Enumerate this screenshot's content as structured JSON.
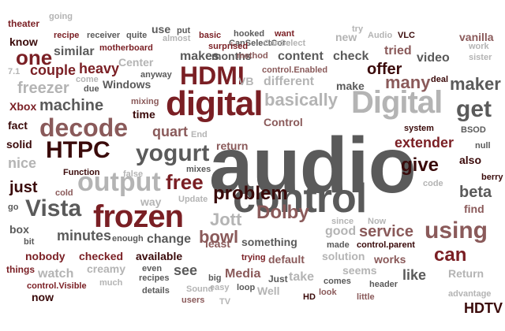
{
  "palette": {
    "dark": "#3a0a0a",
    "maroon": "#7a1f24",
    "rose": "#8a5a5a",
    "gray": "#5a5a5a",
    "lightgray": "#b4b4b4"
  },
  "words": [
    {
      "text": "audio",
      "size": 100,
      "color": "gray"
    },
    {
      "text": "control",
      "size": 52,
      "color": "gray"
    },
    {
      "text": "digital",
      "size": 44,
      "color": "maroon"
    },
    {
      "text": "Digital",
      "size": 40,
      "color": "lightgray"
    },
    {
      "text": "frozen",
      "size": 40,
      "color": "maroon"
    },
    {
      "text": "HDMI",
      "size": 32,
      "color": "maroon"
    },
    {
      "text": "output",
      "size": 34,
      "color": "lightgray"
    },
    {
      "text": "decode",
      "size": 32,
      "color": "rose"
    },
    {
      "text": "HTPC",
      "size": 30,
      "color": "dark"
    },
    {
      "text": "Vista",
      "size": 30,
      "color": "gray"
    },
    {
      "text": "yogurt",
      "size": 30,
      "color": "gray"
    },
    {
      "text": "using",
      "size": 30,
      "color": "rose"
    },
    {
      "text": "get",
      "size": 30,
      "color": "gray"
    },
    {
      "text": "one",
      "size": 26,
      "color": "maroon"
    },
    {
      "text": "free",
      "size": 26,
      "color": "maroon"
    },
    {
      "text": "problem",
      "size": 24,
      "color": "dark"
    },
    {
      "text": "Dolby",
      "size": 24,
      "color": "rose"
    },
    {
      "text": "Jott",
      "size": 22,
      "color": "lightgray"
    },
    {
      "text": "can",
      "size": 24,
      "color": "maroon"
    },
    {
      "text": "give",
      "size": 24,
      "color": "dark"
    },
    {
      "text": "many",
      "size": 22,
      "color": "rose"
    },
    {
      "text": "maker",
      "size": 22,
      "color": "gray"
    },
    {
      "text": "HDTV",
      "size": 18,
      "color": "dark"
    },
    {
      "text": "basically",
      "size": 22,
      "color": "lightgray"
    },
    {
      "text": "bowl",
      "size": 22,
      "color": "rose"
    },
    {
      "text": "service",
      "size": 20,
      "color": "rose"
    },
    {
      "text": "just",
      "size": 20,
      "color": "dark"
    },
    {
      "text": "machine",
      "size": 20,
      "color": "gray"
    },
    {
      "text": "beta",
      "size": 20,
      "color": "gray"
    },
    {
      "text": "offer",
      "size": 20,
      "color": "dark"
    },
    {
      "text": "extender",
      "size": 18,
      "color": "maroon"
    },
    {
      "text": "nice",
      "size": 18,
      "color": "lightgray"
    },
    {
      "text": "freezer",
      "size": 20,
      "color": "lightgray"
    },
    {
      "text": "heavy",
      "size": 18,
      "color": "maroon"
    },
    {
      "text": "couple",
      "size": 18,
      "color": "maroon"
    },
    {
      "text": "quart",
      "size": 18,
      "color": "rose"
    },
    {
      "text": "minutes",
      "size": 18,
      "color": "gray"
    },
    {
      "text": "video",
      "size": 16,
      "color": "gray"
    },
    {
      "text": "content",
      "size": 16,
      "color": "gray"
    },
    {
      "text": "check",
      "size": 16,
      "color": "gray"
    },
    {
      "text": "makes",
      "size": 16,
      "color": "gray"
    },
    {
      "text": "similar",
      "size": 16,
      "color": "gray"
    },
    {
      "text": "like",
      "size": 18,
      "color": "gray"
    },
    {
      "text": "Media",
      "size": 16,
      "color": "rose"
    },
    {
      "text": "see",
      "size": 18,
      "color": "gray"
    },
    {
      "text": "good",
      "size": 16,
      "color": "lightgray"
    },
    {
      "text": "change",
      "size": 16,
      "color": "gray"
    },
    {
      "text": "checked",
      "size": 14,
      "color": "maroon"
    },
    {
      "text": "available",
      "size": 14,
      "color": "dark"
    },
    {
      "text": "watch",
      "size": 16,
      "color": "lightgray"
    },
    {
      "text": "tried",
      "size": 16,
      "color": "rose"
    },
    {
      "text": "take",
      "size": 16,
      "color": "lightgray"
    },
    {
      "text": "Windows",
      "size": 14,
      "color": "gray"
    },
    {
      "text": "different",
      "size": 16,
      "color": "lightgray"
    },
    {
      "text": "make",
      "size": 14,
      "color": "gray"
    },
    {
      "text": "Control",
      "size": 14,
      "color": "rose"
    },
    {
      "text": "something",
      "size": 14,
      "color": "gray"
    },
    {
      "text": "least",
      "size": 14,
      "color": "rose"
    },
    {
      "text": "default",
      "size": 14,
      "color": "rose"
    },
    {
      "text": "solution",
      "size": 14,
      "color": "lightgray"
    },
    {
      "text": "works",
      "size": 14,
      "color": "rose"
    },
    {
      "text": "seems",
      "size": 14,
      "color": "lightgray"
    },
    {
      "text": "fact",
      "size": 14,
      "color": "dark"
    },
    {
      "text": "solid",
      "size": 14,
      "color": "dark"
    },
    {
      "text": "Xbox",
      "size": 14,
      "color": "maroon"
    },
    {
      "text": "know",
      "size": 14,
      "color": "dark"
    },
    {
      "text": "box",
      "size": 14,
      "color": "gray"
    },
    {
      "text": "nobody",
      "size": 14,
      "color": "maroon"
    },
    {
      "text": "creamy",
      "size": 14,
      "color": "lightgray"
    },
    {
      "text": "months",
      "size": 14,
      "color": "gray"
    },
    {
      "text": "use",
      "size": 14,
      "color": "gray"
    },
    {
      "text": "time",
      "size": 14,
      "color": "dark"
    },
    {
      "text": "return",
      "size": 14,
      "color": "rose"
    },
    {
      "text": "Return",
      "size": 14,
      "color": "lightgray"
    },
    {
      "text": "VB",
      "size": 14,
      "color": "lightgray"
    },
    {
      "text": "Center",
      "size": 14,
      "color": "lightgray"
    },
    {
      "text": "way",
      "size": 14,
      "color": "lightgray"
    },
    {
      "text": "find",
      "size": 14,
      "color": "rose"
    },
    {
      "text": "also",
      "size": 14,
      "color": "dark"
    },
    {
      "text": "vanilla",
      "size": 14,
      "color": "rose"
    },
    {
      "text": "new",
      "size": 14,
      "color": "lightgray"
    },
    {
      "text": "Just",
      "size": 12,
      "color": "gray"
    },
    {
      "text": "Well",
      "size": 14,
      "color": "lightgray"
    },
    {
      "text": "now",
      "size": 14,
      "color": "dark"
    },
    {
      "text": "things",
      "size": 12,
      "color": "maroon"
    },
    {
      "text": "control.Visible",
      "size": 11,
      "color": "maroon"
    },
    {
      "text": "control.Enabled",
      "size": 11,
      "color": "rose"
    },
    {
      "text": "control.parent",
      "size": 11,
      "color": "dark"
    },
    {
      "text": "CanSelectCore",
      "size": 11,
      "color": "gray"
    },
    {
      "text": "theater",
      "size": 12,
      "color": "maroon"
    },
    {
      "text": "going",
      "size": 11,
      "color": "lightgray"
    },
    {
      "text": "recipe",
      "size": 11,
      "color": "maroon"
    },
    {
      "text": "receiver",
      "size": 11,
      "color": "gray"
    },
    {
      "text": "quite",
      "size": 11,
      "color": "gray"
    },
    {
      "text": "put",
      "size": 11,
      "color": "gray"
    },
    {
      "text": "almost",
      "size": 11,
      "color": "lightgray"
    },
    {
      "text": "basic",
      "size": 11,
      "color": "maroon"
    },
    {
      "text": "hooked",
      "size": 11,
      "color": "gray"
    },
    {
      "text": "want",
      "size": 11,
      "color": "maroon"
    },
    {
      "text": "try",
      "size": 11,
      "color": "lightgray"
    },
    {
      "text": "Audio",
      "size": 11,
      "color": "lightgray"
    },
    {
      "text": "VLC",
      "size": 11,
      "color": "dark"
    },
    {
      "text": "work",
      "size": 11,
      "color": "lightgray"
    },
    {
      "text": "sister",
      "size": 11,
      "color": "lightgray"
    },
    {
      "text": "motherboard",
      "size": 11,
      "color": "maroon"
    },
    {
      "text": "surprised",
      "size": 11,
      "color": "maroon"
    },
    {
      "text": "method",
      "size": 11,
      "color": "rose"
    },
    {
      "text": "anyway",
      "size": 11,
      "color": "gray"
    },
    {
      "text": "come",
      "size": 11,
      "color": "lightgray"
    },
    {
      "text": "due",
      "size": 11,
      "color": "gray"
    },
    {
      "text": "deal",
      "size": 11,
      "color": "dark"
    },
    {
      "text": "mixing",
      "size": 11,
      "color": "rose"
    },
    {
      "text": "End",
      "size": 11,
      "color": "lightgray"
    },
    {
      "text": "system",
      "size": 11,
      "color": "dark"
    },
    {
      "text": "BSOD",
      "size": 11,
      "color": "gray"
    },
    {
      "text": "null",
      "size": 11,
      "color": "gray"
    },
    {
      "text": "mixes",
      "size": 11,
      "color": "gray"
    },
    {
      "text": "Function",
      "size": 11,
      "color": "dark"
    },
    {
      "text": "false",
      "size": 11,
      "color": "lightgray"
    },
    {
      "text": "code",
      "size": 11,
      "color": "lightgray"
    },
    {
      "text": "berry",
      "size": 11,
      "color": "dark"
    },
    {
      "text": "Update",
      "size": 11,
      "color": "lightgray"
    },
    {
      "text": "cold",
      "size": 11,
      "color": "rose"
    },
    {
      "text": "go",
      "size": 11,
      "color": "gray"
    },
    {
      "text": "since",
      "size": 11,
      "color": "lightgray"
    },
    {
      "text": "Now",
      "size": 11,
      "color": "lightgray"
    },
    {
      "text": "bit",
      "size": 11,
      "color": "gray"
    },
    {
      "text": "enough",
      "size": 11,
      "color": "gray"
    },
    {
      "text": "made",
      "size": 11,
      "color": "gray"
    },
    {
      "text": "trying",
      "size": 11,
      "color": "maroon"
    },
    {
      "text": "even",
      "size": 11,
      "color": "gray"
    },
    {
      "text": "recipes",
      "size": 11,
      "color": "gray"
    },
    {
      "text": "big",
      "size": 11,
      "color": "gray"
    },
    {
      "text": "comes",
      "size": 11,
      "color": "gray"
    },
    {
      "text": "header",
      "size": 11,
      "color": "gray"
    },
    {
      "text": "much",
      "size": 11,
      "color": "lightgray"
    },
    {
      "text": "details",
      "size": 11,
      "color": "gray"
    },
    {
      "text": "Sound",
      "size": 11,
      "color": "lightgray"
    },
    {
      "text": "easy",
      "size": 11,
      "color": "lightgray"
    },
    {
      "text": "loop",
      "size": 11,
      "color": "gray"
    },
    {
      "text": "users",
      "size": 11,
      "color": "rose"
    },
    {
      "text": "TV",
      "size": 11,
      "color": "lightgray"
    },
    {
      "text": "HD",
      "size": 11,
      "color": "dark"
    },
    {
      "text": "look",
      "size": 11,
      "color": "rose"
    },
    {
      "text": "little",
      "size": 11,
      "color": "rose"
    },
    {
      "text": "advantage",
      "size": 11,
      "color": "lightgray"
    },
    {
      "text": "7.1",
      "size": 11,
      "color": "lightgray"
    },
    {
      "text": "CanSelect",
      "size": 11,
      "color": "lightgray"
    }
  ]
}
